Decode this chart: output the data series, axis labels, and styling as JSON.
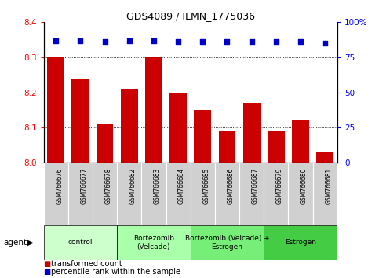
{
  "title": "GDS4089 / ILMN_1775036",
  "samples": [
    "GSM766676",
    "GSM766677",
    "GSM766678",
    "GSM766682",
    "GSM766683",
    "GSM766684",
    "GSM766685",
    "GSM766686",
    "GSM766687",
    "GSM766679",
    "GSM766680",
    "GSM766681"
  ],
  "bar_values": [
    8.3,
    8.24,
    8.11,
    8.21,
    8.3,
    8.2,
    8.15,
    8.09,
    8.17,
    8.09,
    8.12,
    8.03
  ],
  "percentile_values": [
    87,
    87,
    86,
    87,
    87,
    86,
    86,
    86,
    86,
    86,
    86,
    85
  ],
  "bar_color": "#cc0000",
  "percentile_color": "#0000cc",
  "ylim_left": [
    8.0,
    8.4
  ],
  "ylim_right": [
    0,
    100
  ],
  "yticks_left": [
    8.0,
    8.1,
    8.2,
    8.3,
    8.4
  ],
  "yticks_right": [
    0,
    25,
    50,
    75,
    100
  ],
  "grid_values": [
    8.1,
    8.2,
    8.3
  ],
  "groups": [
    {
      "label": "control",
      "start": 0,
      "end": 3,
      "color": "#ccffcc"
    },
    {
      "label": "Bortezomib\n(Velcade)",
      "start": 3,
      "end": 6,
      "color": "#aaffaa"
    },
    {
      "label": "Bortezomib (Velcade) +\nEstrogen",
      "start": 6,
      "end": 9,
      "color": "#77ee77"
    },
    {
      "label": "Estrogen",
      "start": 9,
      "end": 12,
      "color": "#44cc44"
    }
  ],
  "agent_label": "agent",
  "legend_items": [
    {
      "label": "transformed count",
      "color": "#cc0000"
    },
    {
      "label": "percentile rank within the sample",
      "color": "#0000cc"
    }
  ],
  "sample_bg": "#d0d0d0",
  "plot_bg": "#ffffff"
}
